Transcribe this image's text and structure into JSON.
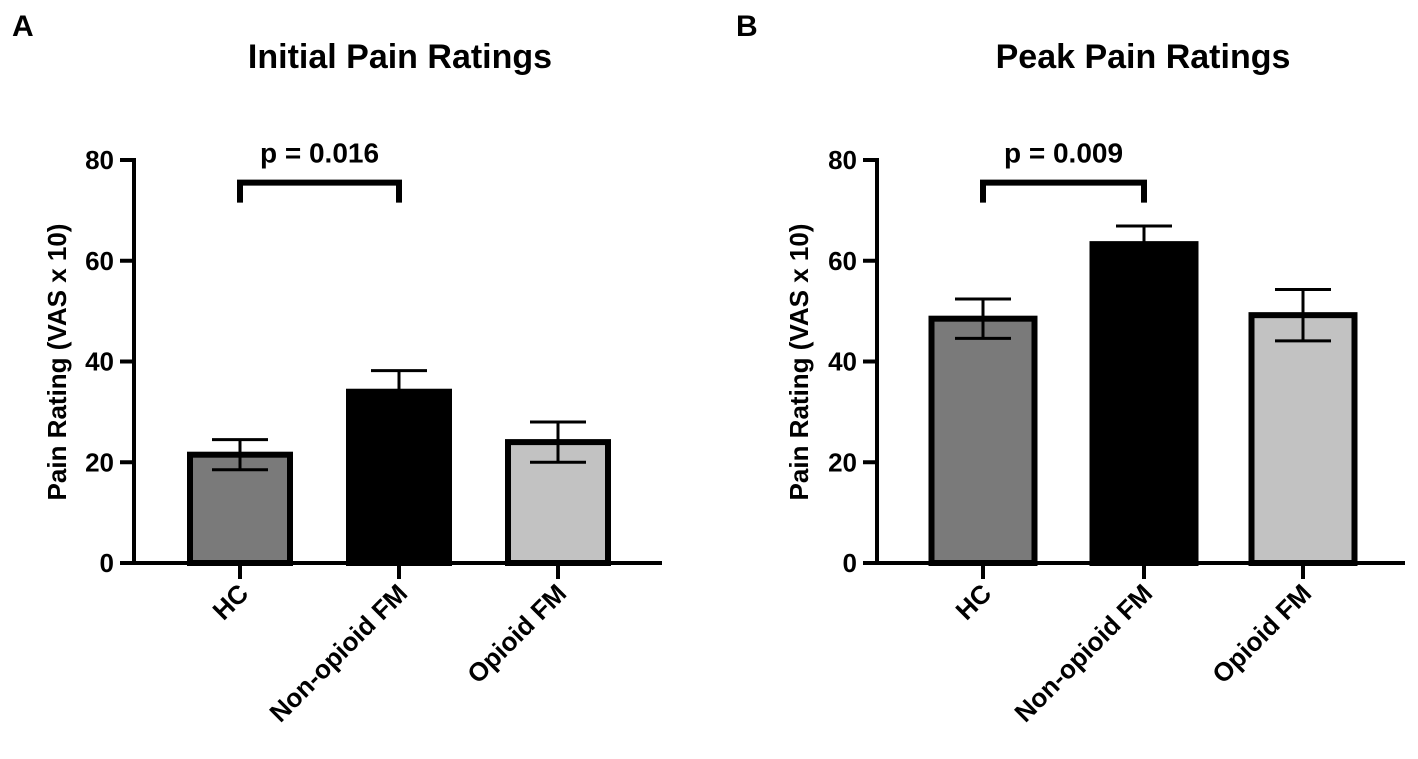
{
  "chart_data": [
    {
      "type": "bar",
      "panel": "A",
      "title": "Initial Pain Ratings",
      "xlabel": "",
      "ylabel": "Pain Rating (VAS x 10)",
      "ylim": [
        0,
        80
      ],
      "yticks": [
        0,
        20,
        40,
        60,
        80
      ],
      "categories": [
        "HC",
        "Non-opioid FM",
        "Opioid FM"
      ],
      "values": [
        21.5,
        34,
        24
      ],
      "errors": [
        3,
        4.2,
        4
      ],
      "bar_colors": [
        "#7a7a7a",
        "#000000",
        "#c2c2c2"
      ],
      "annotation": {
        "text": "p = 0.016",
        "from": 0,
        "to": 1,
        "y": 75.5
      }
    },
    {
      "type": "bar",
      "panel": "B",
      "title": "Peak Pain Ratings",
      "xlabel": "",
      "ylabel": "Pain Rating (VAS x 10)",
      "ylim": [
        0,
        80
      ],
      "yticks": [
        0,
        20,
        40,
        60,
        80
      ],
      "categories": [
        "HC",
        "Non-opioid FM",
        "Opioid FM"
      ],
      "values": [
        48.5,
        63.3,
        49.2
      ],
      "errors": [
        3.9,
        3.6,
        5.1
      ],
      "bar_colors": [
        "#7a7a7a",
        "#000000",
        "#c2c2c2"
      ],
      "annotation": {
        "text": "p = 0.009",
        "from": 0,
        "to": 1,
        "y": 75.5
      }
    }
  ]
}
